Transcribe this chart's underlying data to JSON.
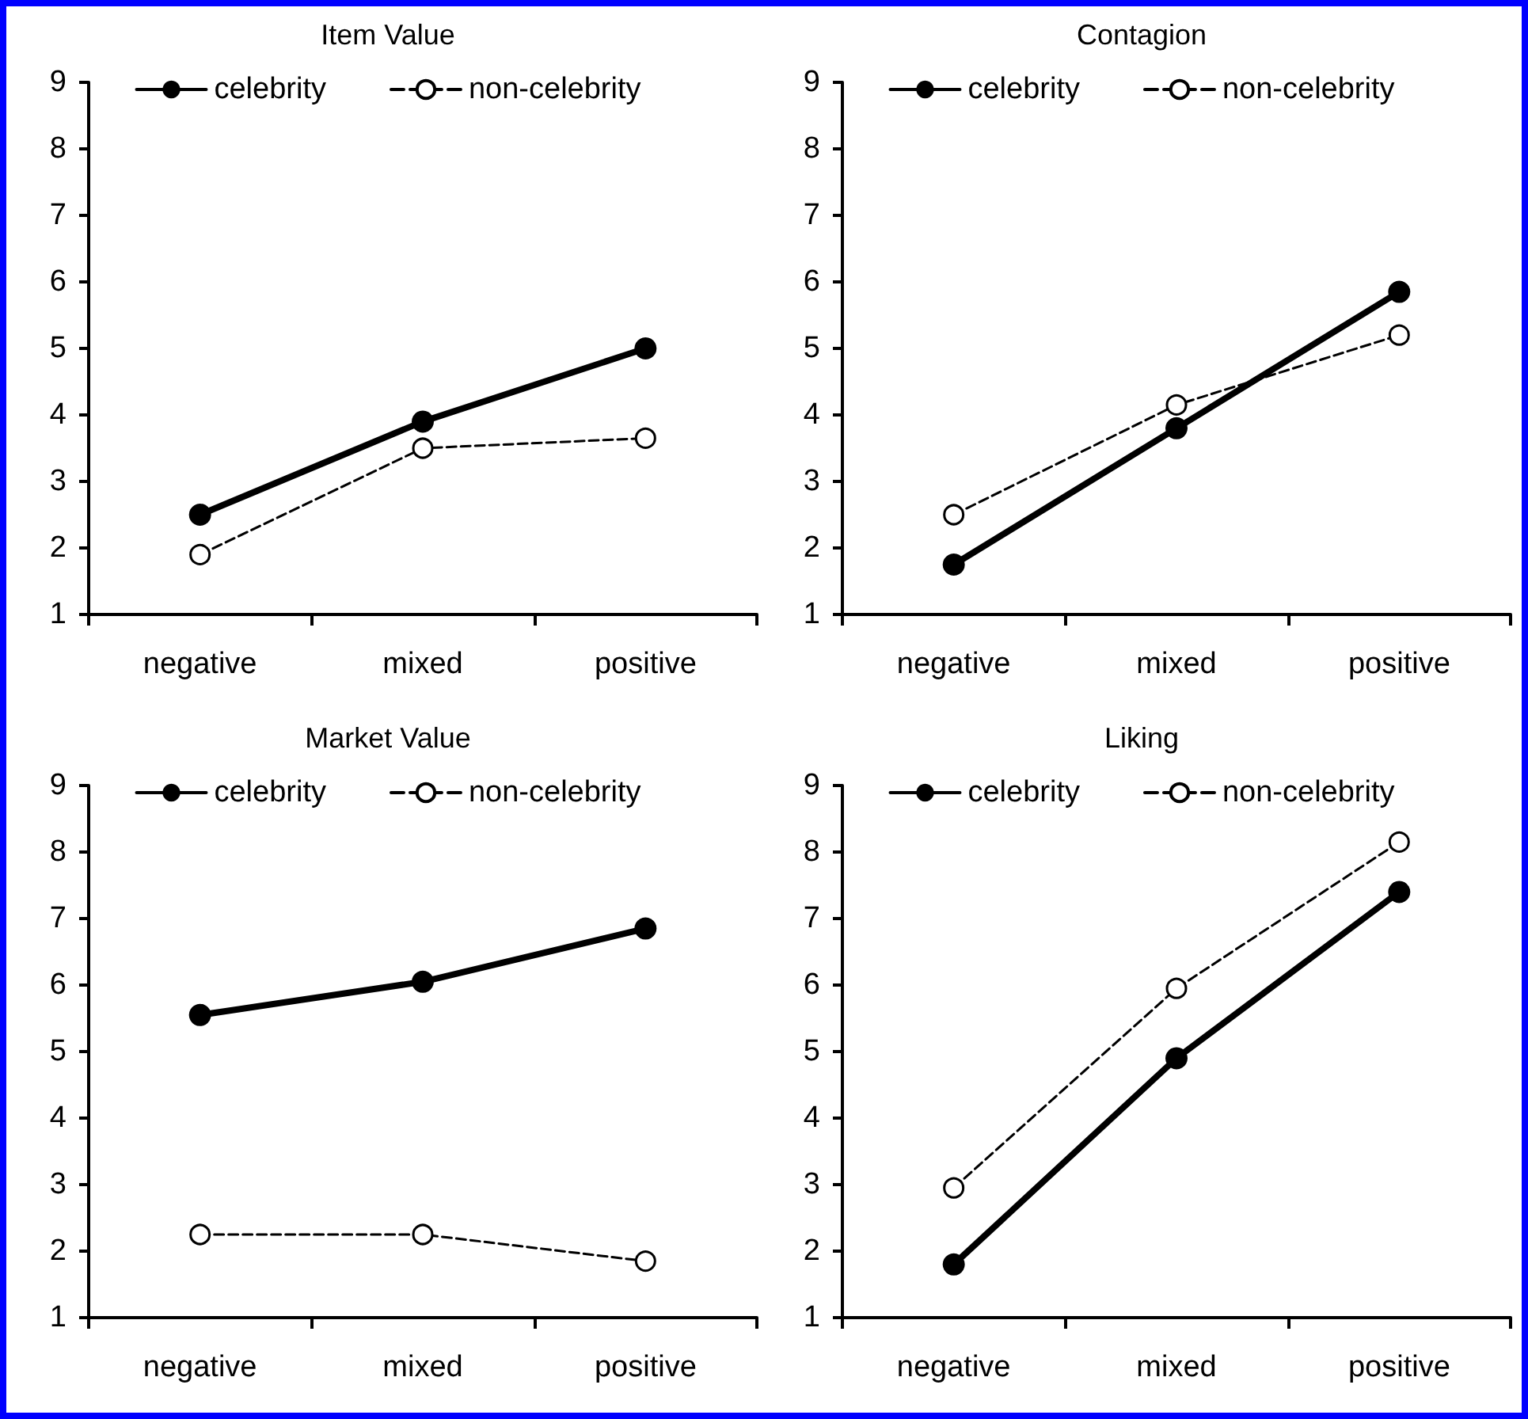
{
  "chart_data": [
    {
      "type": "line",
      "title": "Item Value",
      "categories": [
        "negative",
        "mixed",
        "positive"
      ],
      "ylim": [
        1,
        9
      ],
      "yticks": [
        1,
        2,
        3,
        4,
        5,
        6,
        7,
        8,
        9
      ],
      "grid": false,
      "legend": "top",
      "marker": "circle",
      "series": [
        {
          "name": "celebrity",
          "color": "#000000",
          "line_style": "solid",
          "values": [
            2.5,
            3.9,
            5.0
          ]
        },
        {
          "name": "non-celebrity",
          "color": "#000000",
          "line_style": "dashed",
          "values": [
            1.9,
            3.5,
            3.65
          ]
        }
      ]
    },
    {
      "type": "line",
      "title": "Contagion",
      "categories": [
        "negative",
        "mixed",
        "positive"
      ],
      "ylim": [
        1,
        9
      ],
      "yticks": [
        1,
        2,
        3,
        4,
        5,
        6,
        7,
        8,
        9
      ],
      "grid": false,
      "legend": "top",
      "marker": "circle",
      "series": [
        {
          "name": "celebrity",
          "color": "#000000",
          "line_style": "solid",
          "values": [
            1.75,
            3.8,
            5.85
          ]
        },
        {
          "name": "non-celebrity",
          "color": "#000000",
          "line_style": "dashed",
          "values": [
            2.5,
            4.15,
            5.2
          ]
        }
      ]
    },
    {
      "type": "line",
      "title": "Market Value",
      "categories": [
        "negative",
        "mixed",
        "positive"
      ],
      "ylim": [
        1,
        9
      ],
      "yticks": [
        1,
        2,
        3,
        4,
        5,
        6,
        7,
        8,
        9
      ],
      "grid": false,
      "legend": "top",
      "marker": "circle",
      "series": [
        {
          "name": "celebrity",
          "color": "#000000",
          "line_style": "solid",
          "values": [
            5.55,
            6.05,
            6.85
          ]
        },
        {
          "name": "non-celebrity",
          "color": "#000000",
          "line_style": "dashed",
          "values": [
            2.25,
            2.25,
            1.85
          ]
        }
      ]
    },
    {
      "type": "line",
      "title": "Liking",
      "categories": [
        "negative",
        "mixed",
        "positive"
      ],
      "ylim": [
        1,
        9
      ],
      "yticks": [
        1,
        2,
        3,
        4,
        5,
        6,
        7,
        8,
        9
      ],
      "grid": false,
      "legend": "top",
      "marker": "circle",
      "series": [
        {
          "name": "celebrity",
          "color": "#000000",
          "line_style": "solid",
          "values": [
            1.8,
            4.9,
            7.4
          ]
        },
        {
          "name": "non-celebrity",
          "color": "#000000",
          "line_style": "dashed",
          "values": [
            2.95,
            5.95,
            8.15
          ]
        }
      ]
    }
  ]
}
